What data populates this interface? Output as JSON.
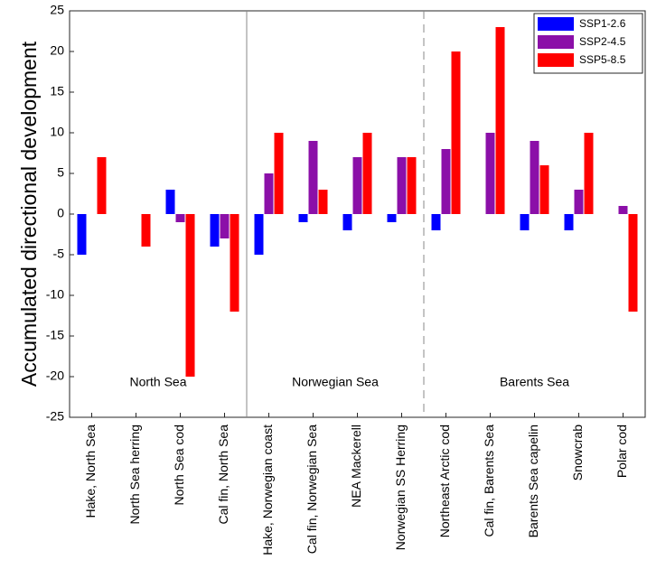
{
  "chart_data": {
    "type": "bar",
    "ylabel": "Accumulated directional development",
    "categories": [
      "Hake, North Sea",
      "North Sea herring",
      "North Sea cod",
      "Cal fin, North Sea",
      "Hake, Norwegian coast",
      "Cal fin, Norwegian Sea",
      "NEA Mackerell",
      "Norwegian SS Herring",
      "Northeast Arctic cod",
      "Cal fin, Barents Sea",
      "Barents Sea capelin",
      "Snowcrab",
      "Polar cod"
    ],
    "series": [
      {
        "name": "SSP1-2.6",
        "color": "#0000ff",
        "values": [
          -5,
          0,
          3,
          -4,
          -5,
          -1,
          -2,
          -1,
          -2,
          0,
          -2,
          -2,
          0
        ]
      },
      {
        "name": "SSP2-4.5",
        "color": "#8b0fa8",
        "values": [
          0,
          0,
          -1,
          -3,
          5,
          9,
          7,
          7,
          8,
          10,
          9,
          3,
          1
        ]
      },
      {
        "name": "SSP5-8.5",
        "color": "#ff0000",
        "values": [
          7,
          -4,
          -20,
          -12,
          10,
          3,
          10,
          7,
          20,
          23,
          6,
          10,
          -12
        ]
      }
    ],
    "annotations": [
      "North Sea",
      "Norwegian Sea",
      "Barents Sea"
    ],
    "ylim": [
      -25,
      25
    ],
    "yticks": [
      -25,
      -20,
      -15,
      -10,
      -5,
      0,
      5,
      10,
      15,
      20,
      25
    ],
    "legend": "upper right",
    "grid": false
  }
}
